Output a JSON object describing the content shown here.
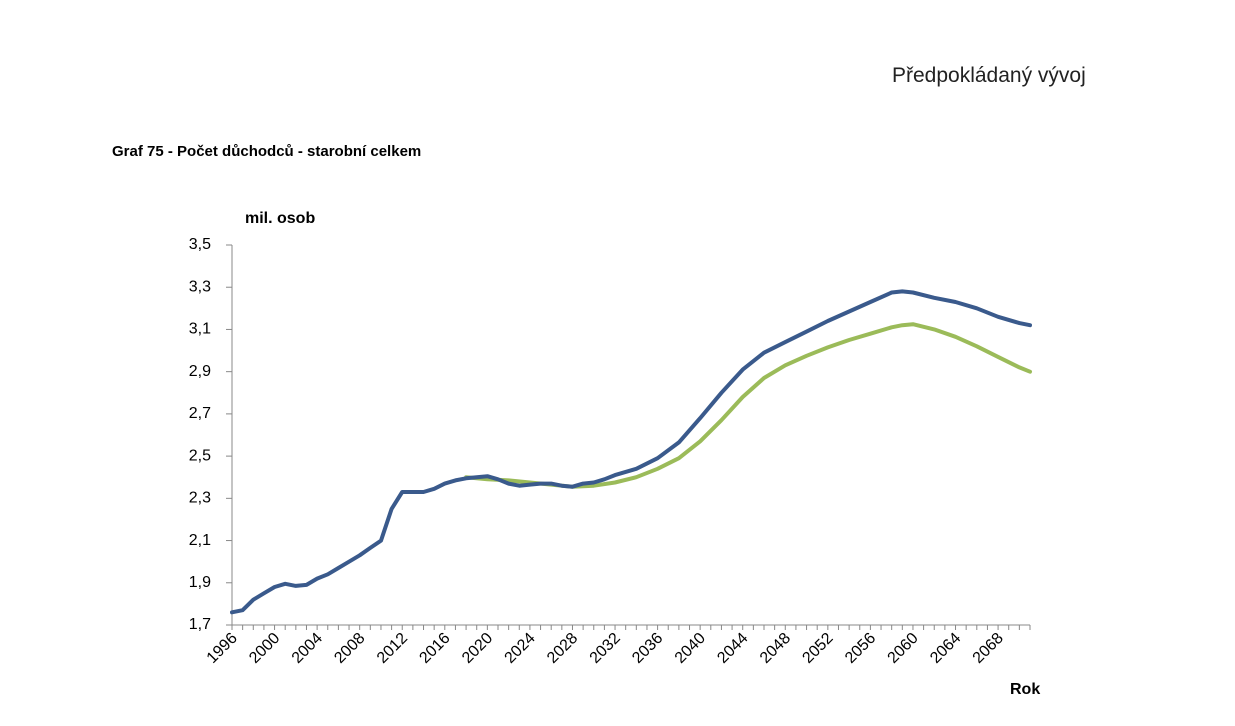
{
  "page": {
    "header_note": "Předpokládaný vývoj"
  },
  "chart_data": {
    "type": "line",
    "title": "Graf 75 - Počet důchodců - starobní celkem",
    "ylabel": "mil. osob",
    "xlabel": "Rok",
    "xlim": [
      1996,
      2071
    ],
    "ylim": [
      1.7,
      3.5
    ],
    "y_ticks": [
      "1,7",
      "1,9",
      "2,1",
      "2,3",
      "2,5",
      "2,7",
      "2,9",
      "3,1",
      "3,3",
      "3,5"
    ],
    "x_ticks": [
      "1996",
      "2000",
      "2004",
      "2008",
      "2012",
      "2016",
      "2020",
      "2024",
      "2028",
      "2032",
      "2036",
      "2040",
      "2044",
      "2048",
      "2052",
      "2056",
      "2060",
      "2064",
      "2068"
    ],
    "grid": false,
    "legend": "none",
    "series": [
      {
        "color": "#9bbb59",
        "x": [
          2018,
          2020,
          2022,
          2024,
          2026,
          2028,
          2030,
          2032,
          2034,
          2036,
          2038,
          2040,
          2042,
          2044,
          2046,
          2048,
          2050,
          2052,
          2054,
          2056,
          2058,
          2059,
          2060,
          2062,
          2064,
          2066,
          2068,
          2070,
          2071
        ],
        "y": [
          2.4,
          2.39,
          2.385,
          2.375,
          2.365,
          2.355,
          2.36,
          2.375,
          2.4,
          2.44,
          2.49,
          2.57,
          2.67,
          2.78,
          2.87,
          2.93,
          2.975,
          3.015,
          3.05,
          3.08,
          3.11,
          3.12,
          3.125,
          3.1,
          3.065,
          3.02,
          2.97,
          2.92,
          2.9
        ]
      },
      {
        "color": "#3a5a8c",
        "x": [
          1996,
          1997,
          1998,
          1999,
          2000,
          2001,
          2002,
          2003,
          2004,
          2005,
          2006,
          2007,
          2008,
          2009,
          2010,
          2011,
          2012,
          2013,
          2014,
          2015,
          2016,
          2017,
          2018,
          2019,
          2020,
          2021,
          2022,
          2023,
          2024,
          2025,
          2026,
          2027,
          2028,
          2029,
          2030,
          2031,
          2032,
          2034,
          2036,
          2038,
          2040,
          2042,
          2044,
          2046,
          2048,
          2050,
          2052,
          2054,
          2056,
          2058,
          2059,
          2060,
          2062,
          2064,
          2066,
          2068,
          2070,
          2071
        ],
        "y": [
          1.76,
          1.77,
          1.82,
          1.85,
          1.88,
          1.895,
          1.885,
          1.89,
          1.92,
          1.94,
          1.97,
          2.0,
          2.03,
          2.065,
          2.1,
          2.25,
          2.33,
          2.33,
          2.33,
          2.345,
          2.37,
          2.385,
          2.395,
          2.4,
          2.405,
          2.39,
          2.37,
          2.36,
          2.365,
          2.37,
          2.37,
          2.36,
          2.355,
          2.37,
          2.375,
          2.39,
          2.41,
          2.44,
          2.49,
          2.565,
          2.68,
          2.8,
          2.91,
          2.99,
          3.04,
          3.09,
          3.14,
          3.185,
          3.23,
          3.275,
          3.28,
          3.275,
          3.25,
          3.23,
          3.2,
          3.16,
          3.13,
          3.12
        ]
      }
    ]
  }
}
